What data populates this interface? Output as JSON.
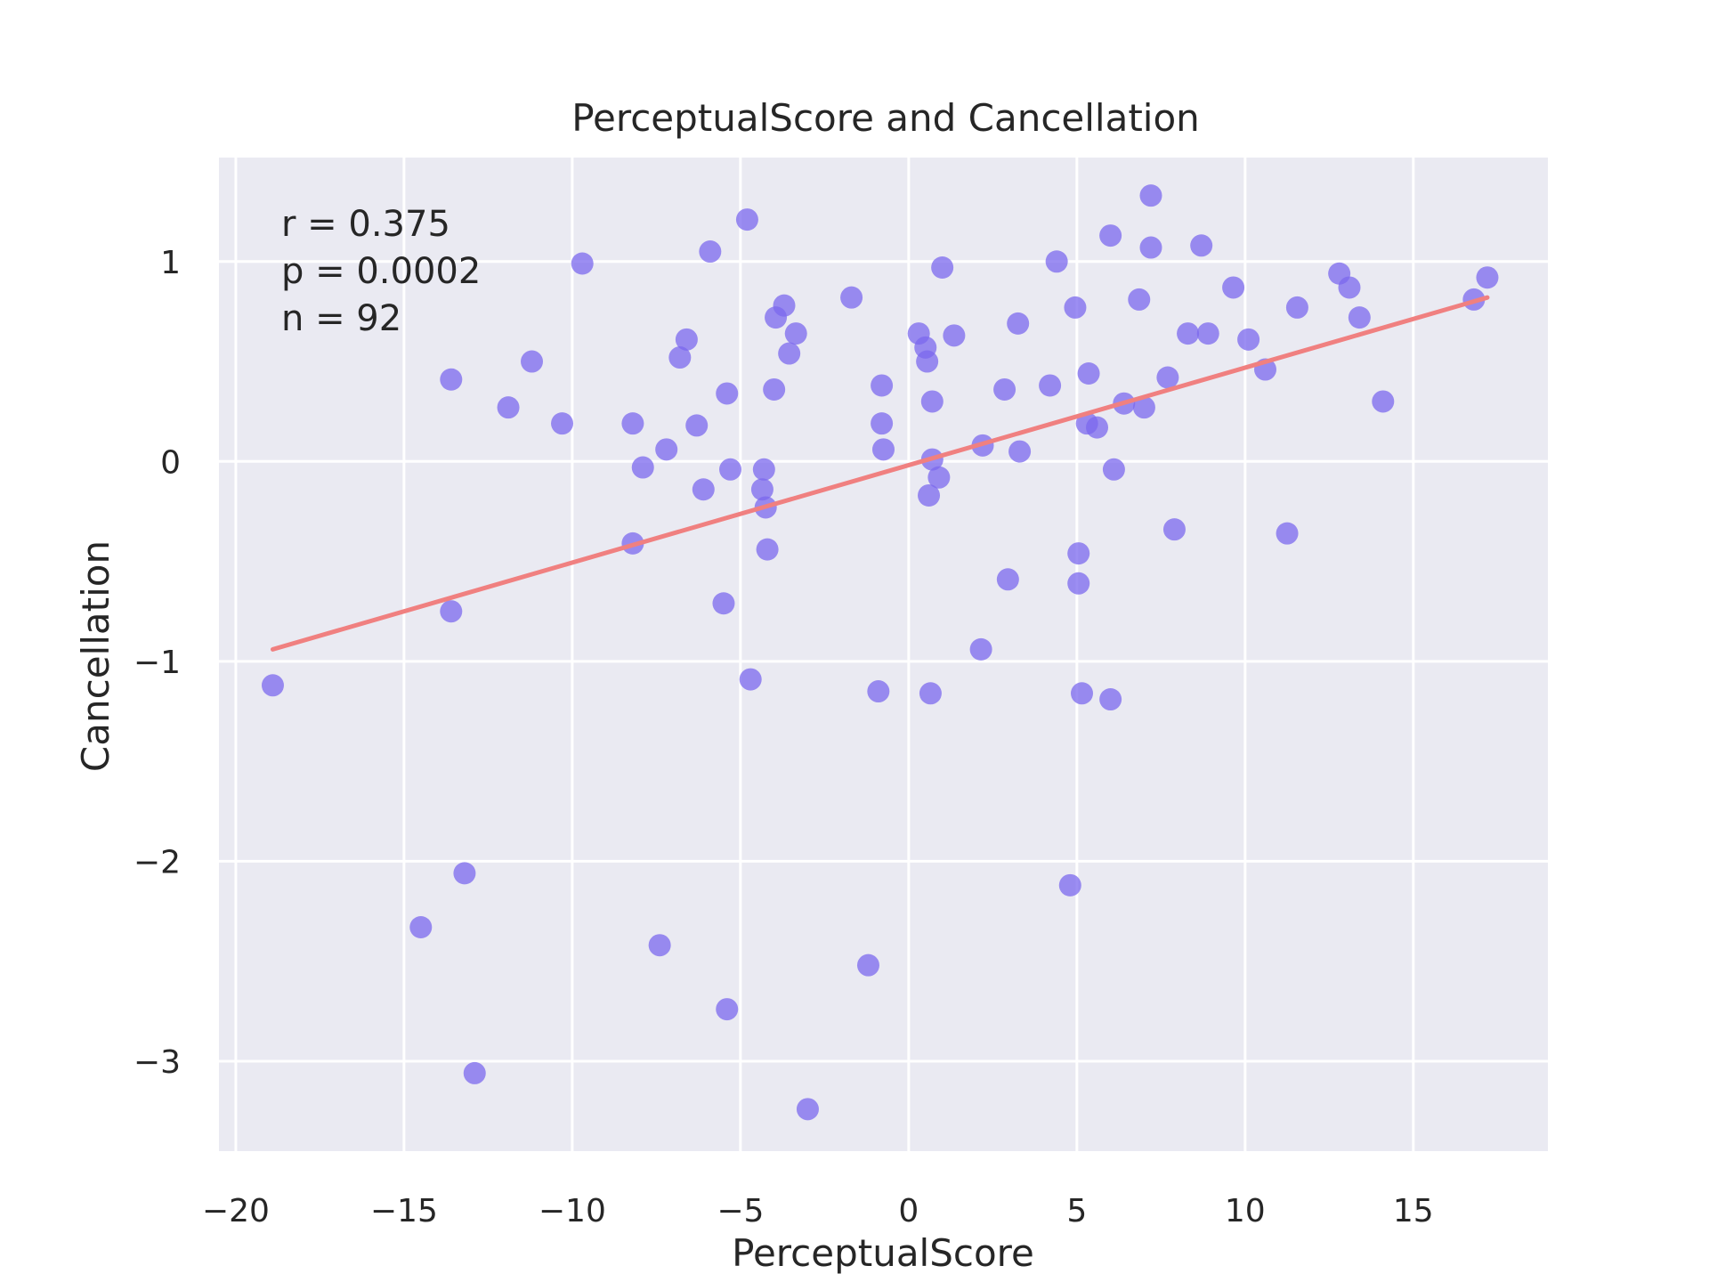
{
  "chart_data": {
    "type": "scatter",
    "title": "PerceptualScore and Cancellation",
    "xlabel": "PerceptualScore",
    "ylabel": "Cancellation",
    "xlim": [
      -20.5,
      19
    ],
    "ylim": [
      -3.45,
      1.52
    ],
    "xticks": [
      -20,
      -15,
      -10,
      -5,
      0,
      5,
      10,
      15
    ],
    "xtick_labels": [
      "−20",
      "−15",
      "−10",
      "−5",
      "0",
      "5",
      "10",
      "15"
    ],
    "yticks": [
      -3,
      -2,
      -1,
      0,
      1
    ],
    "ytick_labels": [
      "−3",
      "−2",
      "−1",
      "0",
      "1"
    ],
    "grid": true,
    "colors": {
      "background": "#eaeaf2",
      "grid": "#ffffff",
      "point": "#7b68ee",
      "fit_line": "#f08080"
    },
    "annotations": [
      "r = 0.375",
      "p = 0.0002",
      "n = 92"
    ],
    "fit_line": {
      "x": [
        -18.9,
        17.2
      ],
      "y": [
        -0.94,
        0.82
      ]
    },
    "points": [
      [
        -18.9,
        -1.12
      ],
      [
        -14.5,
        -2.33
      ],
      [
        -13.6,
        0.41
      ],
      [
        -13.6,
        -0.75
      ],
      [
        -13.2,
        -2.06
      ],
      [
        -12.9,
        -3.06
      ],
      [
        -11.9,
        0.27
      ],
      [
        -11.2,
        0.5
      ],
      [
        -10.3,
        0.19
      ],
      [
        -9.7,
        0.99
      ],
      [
        -8.2,
        0.19
      ],
      [
        -8.2,
        -0.41
      ],
      [
        -7.9,
        -0.03
      ],
      [
        -7.4,
        -2.42
      ],
      [
        -7.2,
        0.06
      ],
      [
        -6.8,
        0.52
      ],
      [
        -6.6,
        0.61
      ],
      [
        -6.3,
        0.18
      ],
      [
        -6.1,
        -0.14
      ],
      [
        -5.9,
        1.05
      ],
      [
        -5.4,
        0.34
      ],
      [
        -5.5,
        -0.71
      ],
      [
        -5.3,
        -0.04
      ],
      [
        -5.4,
        -2.74
      ],
      [
        -4.8,
        1.21
      ],
      [
        -4.7,
        -1.09
      ],
      [
        -4.3,
        -0.04
      ],
      [
        -4.35,
        -0.14
      ],
      [
        -4.25,
        -0.23
      ],
      [
        -4.2,
        -0.44
      ],
      [
        -4.0,
        0.36
      ],
      [
        -3.95,
        0.72
      ],
      [
        -3.7,
        0.78
      ],
      [
        -3.55,
        0.54
      ],
      [
        -3.35,
        0.64
      ],
      [
        -3.0,
        -3.24
      ],
      [
        -1.7,
        0.82
      ],
      [
        -1.2,
        -2.52
      ],
      [
        -0.9,
        -1.15
      ],
      [
        -0.8,
        0.38
      ],
      [
        -0.8,
        0.19
      ],
      [
        -0.75,
        0.06
      ],
      [
        0.3,
        0.64
      ],
      [
        0.5,
        0.57
      ],
      [
        0.55,
        0.5
      ],
      [
        0.6,
        -0.17
      ],
      [
        0.65,
        -1.16
      ],
      [
        0.7,
        0.3
      ],
      [
        0.7,
        0.01
      ],
      [
        0.9,
        -0.08
      ],
      [
        1.0,
        0.97
      ],
      [
        1.35,
        0.63
      ],
      [
        2.15,
        -0.94
      ],
      [
        2.2,
        0.08
      ],
      [
        2.85,
        0.36
      ],
      [
        2.95,
        -0.59
      ],
      [
        3.25,
        0.69
      ],
      [
        3.3,
        0.05
      ],
      [
        4.2,
        0.38
      ],
      [
        4.4,
        1.0
      ],
      [
        4.8,
        -2.12
      ],
      [
        4.95,
        0.77
      ],
      [
        5.05,
        -0.46
      ],
      [
        5.05,
        -0.61
      ],
      [
        5.15,
        -1.16
      ],
      [
        5.3,
        0.19
      ],
      [
        5.35,
        0.44
      ],
      [
        5.6,
        0.17
      ],
      [
        6.0,
        1.13
      ],
      [
        6.0,
        -1.19
      ],
      [
        6.1,
        -0.04
      ],
      [
        6.4,
        0.29
      ],
      [
        6.85,
        0.81
      ],
      [
        7.0,
        0.27
      ],
      [
        7.2,
        1.33
      ],
      [
        7.2,
        1.07
      ],
      [
        7.7,
        0.42
      ],
      [
        7.9,
        -0.34
      ],
      [
        8.3,
        0.64
      ],
      [
        8.7,
        1.08
      ],
      [
        8.9,
        0.64
      ],
      [
        9.65,
        0.87
      ],
      [
        10.1,
        0.61
      ],
      [
        10.6,
        0.46
      ],
      [
        11.25,
        -0.36
      ],
      [
        11.55,
        0.77
      ],
      [
        12.8,
        0.94
      ],
      [
        13.1,
        0.87
      ],
      [
        13.4,
        0.72
      ],
      [
        14.1,
        0.3
      ],
      [
        16.8,
        0.81
      ],
      [
        17.2,
        0.92
      ]
    ]
  }
}
